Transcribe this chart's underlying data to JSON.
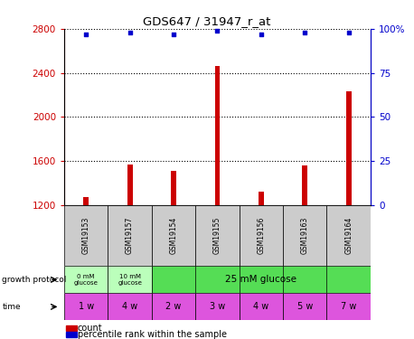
{
  "title": "GDS647 / 31947_r_at",
  "samples": [
    "GSM19153",
    "GSM19157",
    "GSM19154",
    "GSM19155",
    "GSM19156",
    "GSM19163",
    "GSM19164"
  ],
  "bar_values": [
    1270,
    1565,
    1510,
    2460,
    1320,
    1560,
    2230
  ],
  "pct_values": [
    97,
    98,
    97,
    99,
    97,
    98,
    98
  ],
  "ylim_left": [
    1200,
    2800
  ],
  "ylim_right": [
    0,
    100
  ],
  "yticks_left": [
    1200,
    1600,
    2000,
    2400,
    2800
  ],
  "yticks_right": [
    0,
    25,
    50,
    75,
    100
  ],
  "bar_color": "#cc0000",
  "dot_color": "#0000cc",
  "axis_color_left": "#cc0000",
  "axis_color_right": "#0000cc",
  "time_labels": [
    "1 w",
    "4 w",
    "2 w",
    "3 w",
    "4 w",
    "5 w",
    "7 w"
  ],
  "time_bg_color": "#dd55dd",
  "sample_area_color": "#cccccc",
  "growth_light_green": "#bbffbb",
  "growth_bright_green": "#55dd55"
}
